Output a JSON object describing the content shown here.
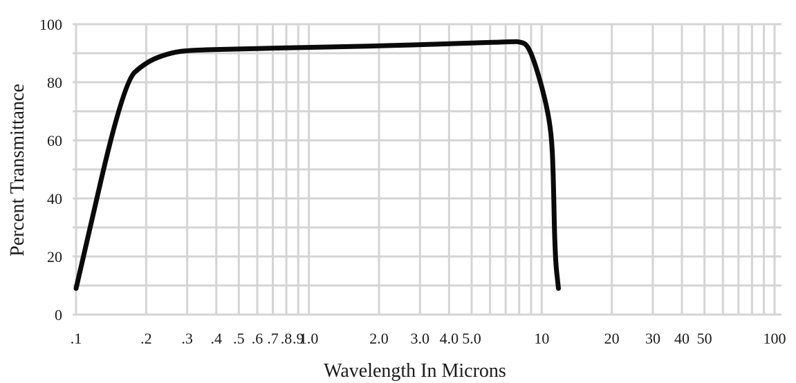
{
  "chart_data": {
    "type": "line",
    "title": "",
    "xlabel": "Wavelength In Microns",
    "ylabel": "Percent Transmittance",
    "x_scale": "log",
    "xlim": [
      0.1,
      100
    ],
    "ylim": [
      0,
      100
    ],
    "grid": true,
    "x_ticks": [
      {
        "value": 0.1,
        "label": ".1"
      },
      {
        "value": 0.2,
        "label": ".2"
      },
      {
        "value": 0.3,
        "label": ".3"
      },
      {
        "value": 0.4,
        "label": ".4"
      },
      {
        "value": 0.5,
        "label": ".5"
      },
      {
        "value": 0.6,
        "label": ".6"
      },
      {
        "value": 0.7,
        "label": ".7"
      },
      {
        "value": 0.8,
        "label": ".8"
      },
      {
        "value": 0.9,
        "label": ".9"
      },
      {
        "value": 1.0,
        "label": "1.0"
      },
      {
        "value": 2.0,
        "label": "2.0"
      },
      {
        "value": 3.0,
        "label": "3.0"
      },
      {
        "value": 4.0,
        "label": "4.0"
      },
      {
        "value": 5.0,
        "label": "5.0"
      },
      {
        "value": 10,
        "label": "10"
      },
      {
        "value": 20,
        "label": "20"
      },
      {
        "value": 30,
        "label": "30"
      },
      {
        "value": 40,
        "label": "40"
      },
      {
        "value": 50,
        "label": "50"
      },
      {
        "value": 100,
        "label": "100"
      }
    ],
    "y_ticks": [
      0,
      20,
      40,
      60,
      80,
      100
    ],
    "series": [
      {
        "color": "#0a0a0a",
        "points": [
          {
            "x": 0.1,
            "y": 9
          },
          {
            "x": 0.16,
            "y": 80
          },
          {
            "x": 0.2,
            "y": 87
          },
          {
            "x": 0.25,
            "y": 90
          },
          {
            "x": 0.3,
            "y": 91
          },
          {
            "x": 0.5,
            "y": 91.5
          },
          {
            "x": 1.0,
            "y": 92
          },
          {
            "x": 2.0,
            "y": 92.5
          },
          {
            "x": 5.0,
            "y": 93.5
          },
          {
            "x": 7.5,
            "y": 94
          },
          {
            "x": 8.0,
            "y": 94
          },
          {
            "x": 8.7,
            "y": 93
          },
          {
            "x": 9.5,
            "y": 85
          },
          {
            "x": 10.5,
            "y": 72
          },
          {
            "x": 11.0,
            "y": 62
          },
          {
            "x": 11.2,
            "y": 50
          },
          {
            "x": 11.4,
            "y": 20
          },
          {
            "x": 11.8,
            "y": 9
          }
        ]
      }
    ]
  }
}
